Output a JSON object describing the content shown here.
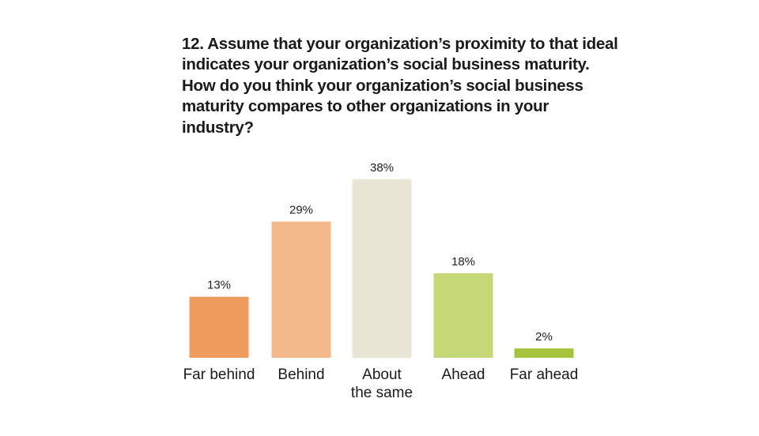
{
  "chart_data": {
    "type": "bar",
    "title": "12. Assume that your organization’s proximity to that ideal indicates your organization’s social business maturity. How do you think your organization’s social business maturity compares to other organizations in your industry?",
    "categories": [
      "Far behind",
      "Behind",
      "About\nthe same",
      "Ahead",
      "Far ahead"
    ],
    "values": [
      13,
      29,
      38,
      18,
      2
    ],
    "value_labels": [
      "13%",
      "29%",
      "38%",
      "18%",
      "2%"
    ],
    "colors": [
      "#ee9d5e",
      "#f4b98a",
      "#e9e6d6",
      "#c5d878",
      "#a5c43c"
    ],
    "ylim": [
      0,
      38
    ],
    "grid": false,
    "legend": "none"
  }
}
